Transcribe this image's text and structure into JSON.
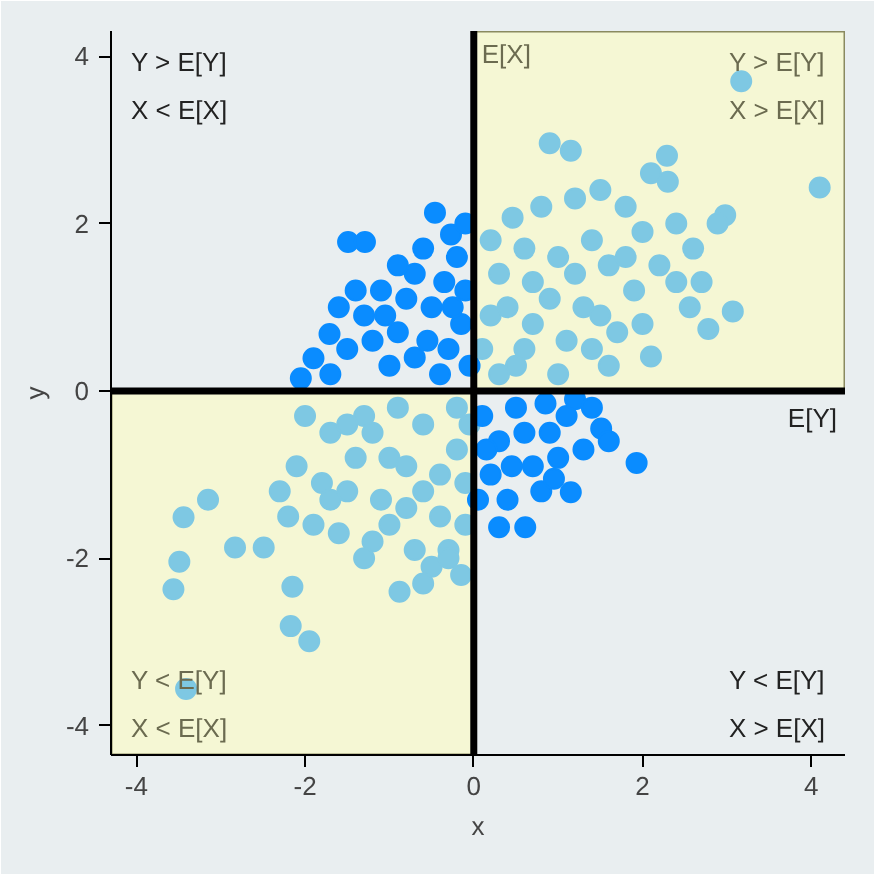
{
  "chart_data": {
    "type": "scatter",
    "xlabel": "x",
    "ylabel": "y",
    "marker": "circle",
    "grid": false,
    "xlim": [
      -4.3,
      4.4
    ],
    "ylim": [
      -4.35,
      4.3
    ],
    "xticks": [
      -4,
      -2,
      0,
      2,
      4
    ],
    "yticks": [
      -4,
      -2,
      0,
      2,
      4
    ],
    "annotations": [
      "Y > E[Y]\nX < E[X]",
      "Y > E[Y]\nX > E[X]",
      "Y < E[Y]\nX < E[X]",
      "Y < E[Y]\nX > E[X]"
    ],
    "ref_lines": [
      {
        "axis": "x",
        "value": 0,
        "label": "E[X]",
        "color": "#000000"
      },
      {
        "axis": "y",
        "value": 0,
        "label": "E[Y]",
        "color": "#000000"
      }
    ],
    "bands": [
      {
        "axis": "x",
        "from": 0,
        "to": 4.4,
        "color": "#f5f7d4"
      },
      {
        "axis": "x",
        "from": -4.3,
        "to": 0,
        "color": "#f5f7d4"
      }
    ],
    "series": [
      {
        "color": "#7ec8e3",
        "x": [
          4.1,
          3.17,
          2.29,
          0.9,
          1.15,
          2.98,
          2.89,
          3.07,
          2.78,
          2.56,
          2.1,
          0.46,
          2.3,
          2.0,
          1.8,
          1.6,
          1.4,
          1.2,
          1.0,
          0.8,
          0.6,
          0.3,
          0.2,
          0.1,
          0.5,
          0.7,
          0.9,
          1.1,
          1.3,
          1.5,
          1.7,
          1.9,
          2.2,
          2.4,
          2.6,
          1.0,
          0.4,
          0.3,
          1.2,
          1.8,
          2.1,
          1.5,
          0.7,
          0.2,
          1.6,
          2.0,
          1.4,
          0.6,
          2.4,
          2.7,
          -3.44,
          -3.15,
          -3.49,
          -3.56,
          -3.41,
          -2.83,
          -2.49,
          -2.17,
          -1.95,
          -2.15,
          -0.88,
          -2.3,
          -2.1,
          -1.9,
          -1.7,
          -1.5,
          -1.3,
          -1.2,
          -1.0,
          -0.8,
          -0.6,
          -0.4,
          -0.2,
          -0.1,
          -0.3,
          -0.5,
          -0.7,
          -1.1,
          -1.4,
          -1.6,
          -1.8,
          -2.0,
          -0.9,
          -0.2,
          -0.6,
          -1.2,
          -0.3,
          -0.1,
          -1.0,
          -1.5,
          -2.2,
          -0.4,
          -0.8,
          -1.7,
          -0.15,
          -0.6,
          -1.3,
          -0.05
        ],
        "values": [
          2.43,
          3.7,
          2.81,
          2.96,
          2.87,
          2.1,
          2.0,
          0.95,
          0.74,
          1.0,
          0.41,
          2.07,
          2.5,
          1.9,
          2.2,
          1.5,
          1.8,
          2.3,
          1.6,
          2.2,
          1.7,
          1.4,
          0.9,
          0.5,
          0.3,
          0.8,
          1.1,
          0.6,
          1.0,
          0.9,
          0.7,
          1.2,
          1.5,
          1.3,
          1.7,
          0.2,
          1.0,
          0.2,
          1.4,
          1.6,
          2.6,
          2.4,
          1.3,
          1.8,
          0.3,
          0.8,
          0.5,
          0.5,
          2.0,
          1.3,
          -1.51,
          -1.3,
          -2.04,
          -2.37,
          -3.56,
          -1.87,
          -1.87,
          -2.81,
          -2.99,
          -2.34,
          -2.4,
          -1.2,
          -0.9,
          -1.6,
          -0.5,
          -1.2,
          -0.3,
          -1.8,
          -0.8,
          -1.4,
          -0.4,
          -1.0,
          -0.2,
          -1.6,
          -1.9,
          -2.1,
          -1.9,
          -1.3,
          -0.8,
          -1.7,
          -1.1,
          -0.3,
          -0.2,
          -0.7,
          -1.2,
          -0.5,
          -2.0,
          -1.1,
          -1.6,
          -0.4,
          -1.5,
          -1.5,
          -0.9,
          -1.3,
          -2.2,
          -2.3,
          -2.0,
          -0.4
        ]
      },
      {
        "color": "#0a8cff",
        "x": [
          -1.49,
          -1.29,
          -0.46,
          -0.27,
          -1.71,
          -1.9,
          -2.05,
          -1.5,
          -1.3,
          -1.1,
          -0.9,
          -0.7,
          -0.5,
          -0.3,
          -0.1,
          -0.2,
          -0.6,
          -0.8,
          -1.0,
          -1.2,
          -0.4,
          -0.15,
          -0.7,
          -1.4,
          -0.9,
          -0.35,
          -1.7,
          -0.05,
          -0.55,
          -1.05,
          -0.25,
          -0.1,
          -1.6,
          1.93,
          1.51,
          1.15,
          0.61,
          0.3,
          0.1,
          0.3,
          0.5,
          0.7,
          0.9,
          1.1,
          1.3,
          0.2,
          0.4,
          0.8,
          1.0,
          1.2,
          0.6,
          0.05,
          0.15,
          1.4,
          0.85,
          0.45,
          1.6,
          0.95
        ],
        "values": [
          1.78,
          1.78,
          2.13,
          1.87,
          0.68,
          0.39,
          0.15,
          0.5,
          0.9,
          1.2,
          0.7,
          1.4,
          1.0,
          0.5,
          1.2,
          1.6,
          1.7,
          1.1,
          0.3,
          0.6,
          0.2,
          0.8,
          0.4,
          1.2,
          1.5,
          1.3,
          0.2,
          0.3,
          0.6,
          0.9,
          1.0,
          2.0,
          1.0,
          -0.86,
          -0.45,
          -1.21,
          -1.63,
          -1.63,
          -0.3,
          -0.6,
          -0.2,
          -0.9,
          -0.5,
          -0.3,
          -0.7,
          -1.0,
          -1.3,
          -1.2,
          -0.8,
          -0.1,
          -0.5,
          -1.3,
          -0.7,
          -0.2,
          -0.15,
          -0.9,
          -0.6,
          -1.05
        ]
      }
    ]
  }
}
